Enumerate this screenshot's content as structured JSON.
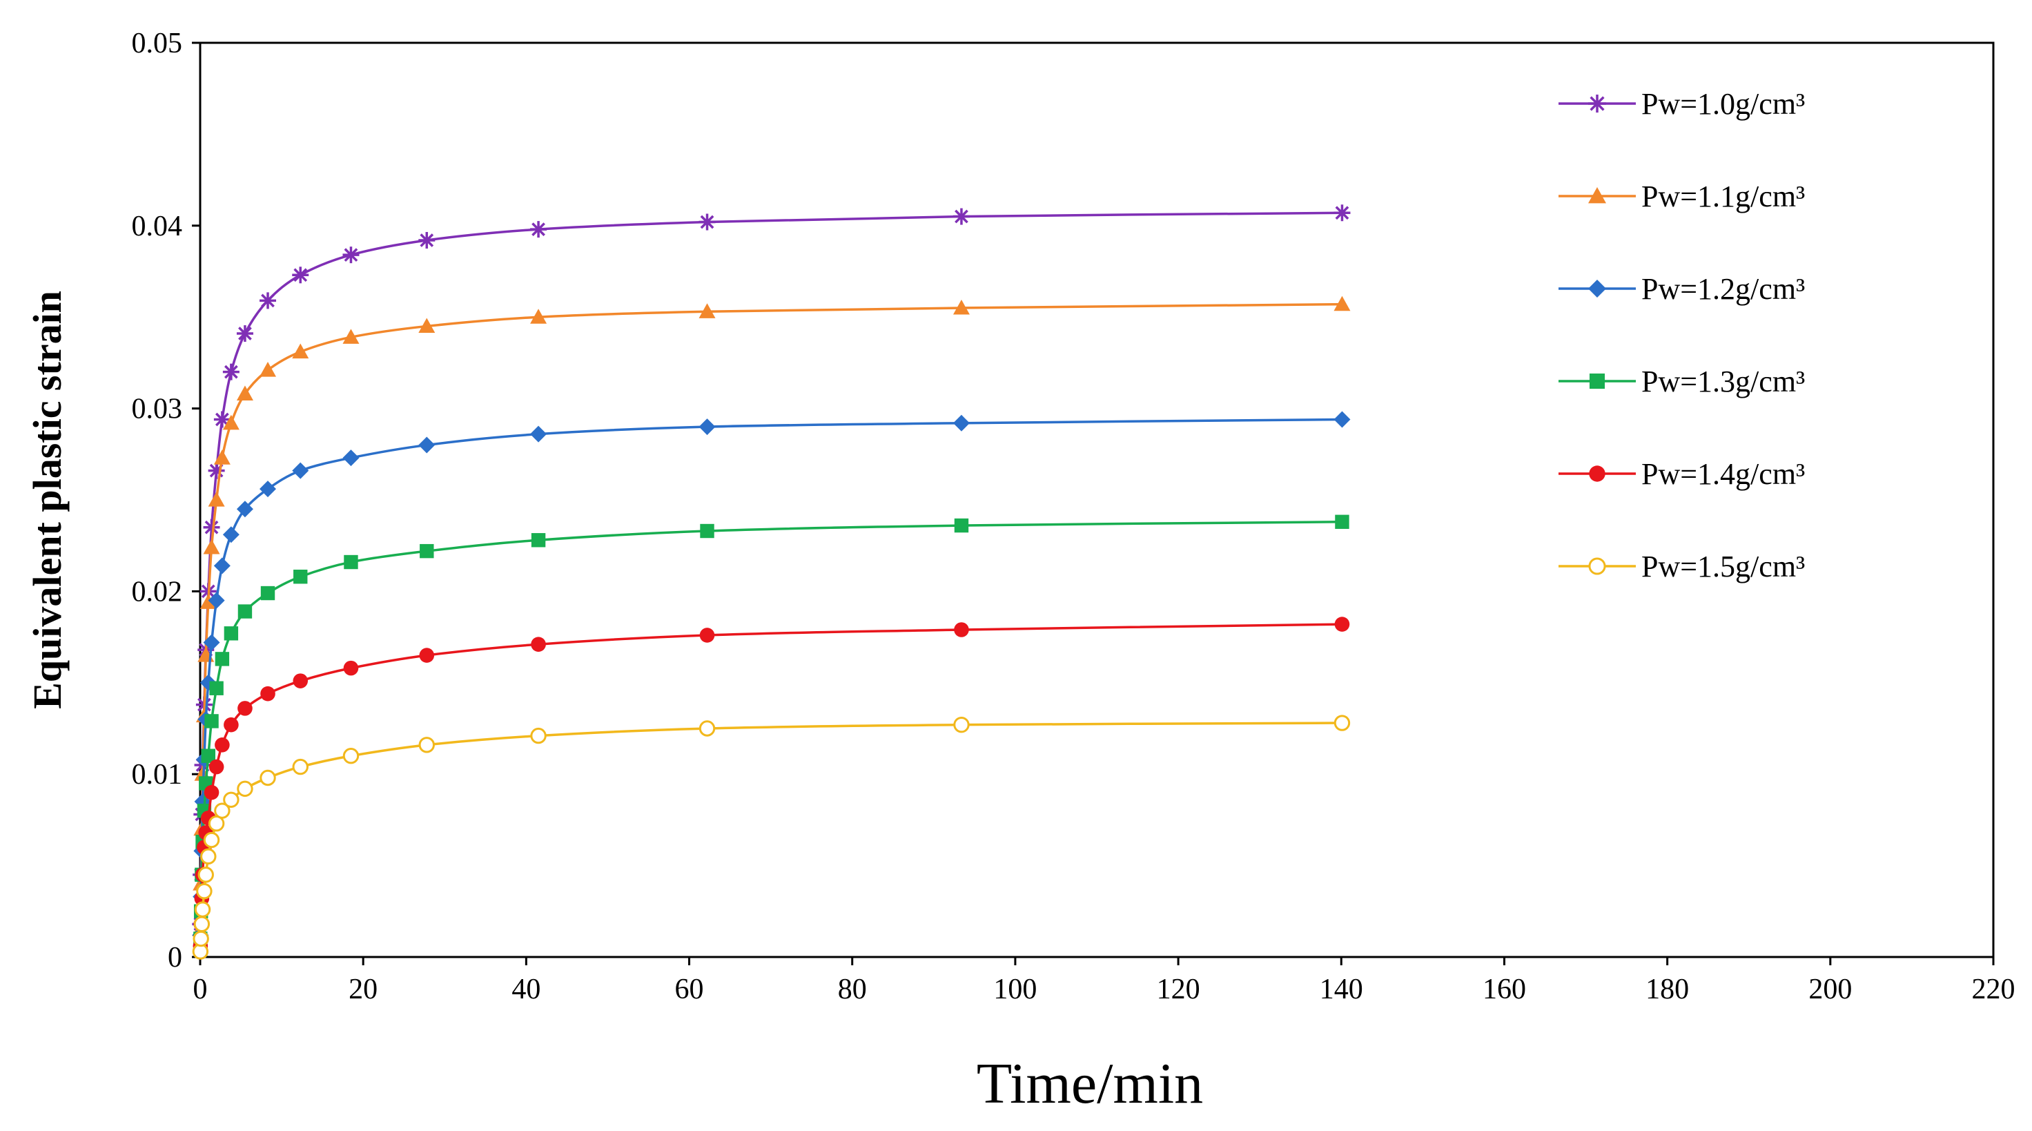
{
  "chart_data": {
    "type": "line",
    "title": "",
    "xlabel": "Time/min",
    "ylabel": "Equivalent plastic strain",
    "xlim": [
      0,
      220
    ],
    "ylim": [
      0,
      0.05
    ],
    "xticks": [
      0,
      20,
      40,
      60,
      80,
      100,
      120,
      140,
      160,
      180,
      200,
      220
    ],
    "xtick_labels": [
      "0",
      "20",
      "40",
      "60",
      "80",
      "100",
      "120",
      "140",
      "160",
      "180",
      "200",
      "220"
    ],
    "yticks": [
      0,
      0.01,
      0.02,
      0.03,
      0.04,
      0.05
    ],
    "ytick_labels": [
      "0",
      "0.01",
      "0.02",
      "0.03",
      "0.04",
      "0.05"
    ],
    "grid": false,
    "legend_position": "top-right",
    "x": [
      0.03,
      0.1,
      0.2,
      0.3,
      0.5,
      0.7,
      1.0,
      1.4,
      2.0,
      2.7,
      3.8,
      5.5,
      8.3,
      12.3,
      18.5,
      27.8,
      41.5,
      62.2,
      93.4,
      140.1
    ],
    "series": [
      {
        "name": "Pw=1.0g/cm³",
        "color": "#7F2FB5",
        "marker": "star",
        "values": [
          0.0018,
          0.0045,
          0.0078,
          0.0105,
          0.0138,
          0.0168,
          0.02,
          0.0235,
          0.0266,
          0.0294,
          0.032,
          0.0341,
          0.0359,
          0.0373,
          0.0384,
          0.0392,
          0.0398,
          0.0402,
          0.0405,
          0.0407
        ]
      },
      {
        "name": "Pw=1.1g/cm³",
        "color": "#F2872B",
        "marker": "triangle",
        "values": [
          0.0015,
          0.004,
          0.007,
          0.01,
          0.0132,
          0.0165,
          0.0194,
          0.0224,
          0.025,
          0.0273,
          0.0292,
          0.0308,
          0.0321,
          0.0331,
          0.0339,
          0.0345,
          0.035,
          0.0353,
          0.0355,
          0.0357
        ]
      },
      {
        "name": "Pw=1.2g/cm³",
        "color": "#2B6FC9",
        "marker": "diamond",
        "values": [
          0.0012,
          0.0033,
          0.0058,
          0.0085,
          0.0108,
          0.013,
          0.015,
          0.0172,
          0.0195,
          0.0214,
          0.0231,
          0.0245,
          0.0256,
          0.0266,
          0.0273,
          0.028,
          0.0286,
          0.029,
          0.0292,
          0.0294
        ]
      },
      {
        "name": "Pw=1.3g/cm³",
        "color": "#18AE50",
        "marker": "square",
        "values": [
          0.001,
          0.0025,
          0.0045,
          0.0063,
          0.008,
          0.0095,
          0.011,
          0.0129,
          0.0147,
          0.0163,
          0.0177,
          0.0189,
          0.0199,
          0.0208,
          0.0216,
          0.0222,
          0.0228,
          0.0233,
          0.0236,
          0.0238
        ]
      },
      {
        "name": "Pw=1.4g/cm³",
        "color": "#E8161C",
        "marker": "circle",
        "values": [
          0.0006,
          0.0018,
          0.0032,
          0.0045,
          0.006,
          0.0068,
          0.0076,
          0.009,
          0.0104,
          0.0116,
          0.0127,
          0.0136,
          0.0144,
          0.0151,
          0.0158,
          0.0165,
          0.0171,
          0.0176,
          0.0179,
          0.0182
        ]
      },
      {
        "name": "Pw=1.5g/cm³",
        "color": "#F2B81C",
        "marker": "open-circle",
        "values": [
          0.0003,
          0.001,
          0.0018,
          0.0026,
          0.0036,
          0.0045,
          0.0055,
          0.0064,
          0.0073,
          0.008,
          0.0086,
          0.0092,
          0.0098,
          0.0104,
          0.011,
          0.0116,
          0.0121,
          0.0125,
          0.0127,
          0.0128
        ]
      }
    ]
  }
}
